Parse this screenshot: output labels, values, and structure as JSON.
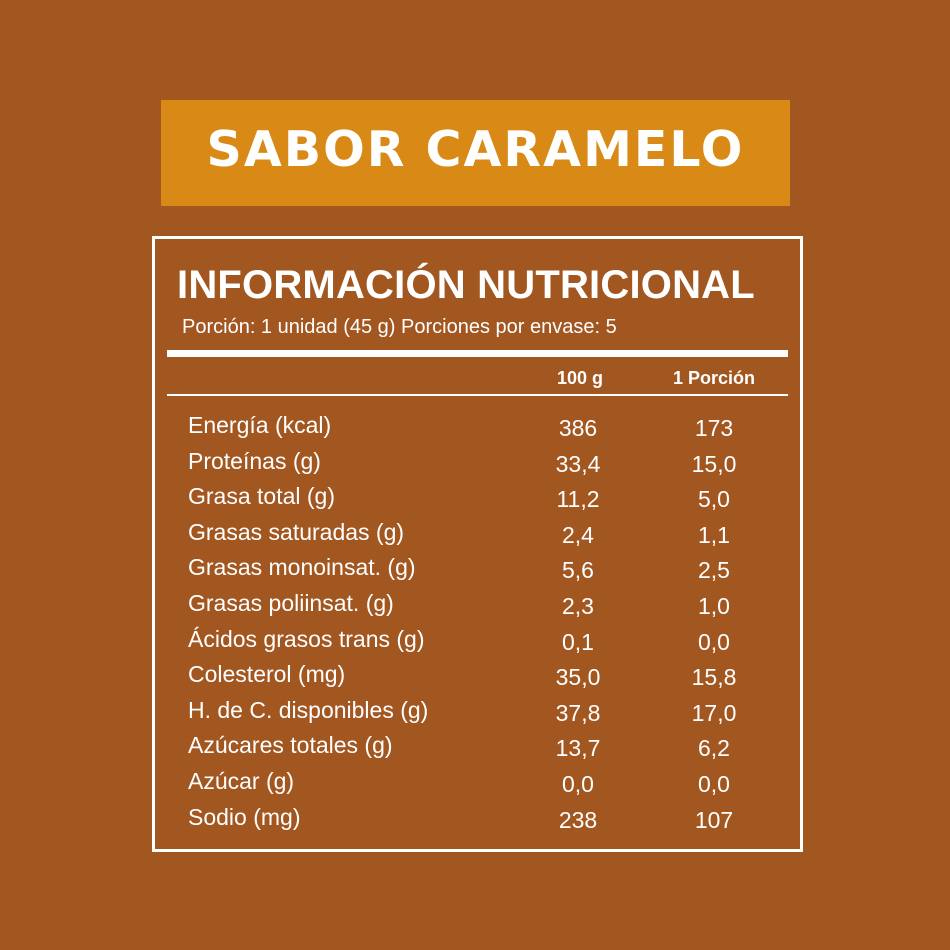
{
  "banner": {
    "title": "SABOR CARAMELO"
  },
  "panel": {
    "title": "INFORMACIÓN NUTRICIONAL",
    "subtitle": "Porción: 1 unidad (45 g) Porciones por envase: 5",
    "columns": [
      "100 g",
      "1 Porción"
    ],
    "rows": [
      {
        "label": "Energía (kcal)",
        "per100": "386",
        "perPortion": "173"
      },
      {
        "label": "Proteínas (g)",
        "per100": "33,4",
        "perPortion": "15,0"
      },
      {
        "label": "Grasa total (g)",
        "per100": "11,2",
        "perPortion": "5,0"
      },
      {
        "label": "Grasas saturadas (g)",
        "per100": "2,4",
        "perPortion": "1,1"
      },
      {
        "label": "Grasas monoinsat. (g)",
        "per100": "5,6",
        "perPortion": "2,5"
      },
      {
        "label": "Grasas poliinsat. (g)",
        "per100": "2,3",
        "perPortion": "1,0"
      },
      {
        "label": "Ácidos grasos trans (g)",
        "per100": "0,1",
        "perPortion": "0,0"
      },
      {
        "label": "Colesterol (mg)",
        "per100": "35,0",
        "perPortion": "15,8"
      },
      {
        "label": "H. de C. disponibles (g)",
        "per100": "37,8",
        "perPortion": "17,0"
      },
      {
        "label": "Azúcares totales (g)",
        "per100": "13,7",
        "perPortion": "6,2"
      },
      {
        "label": "Azúcar (g)",
        "per100": "0,0",
        "perPortion": "0,0"
      },
      {
        "label": "Sodio (mg)",
        "per100": "238",
        "perPortion": "107"
      }
    ]
  },
  "colors": {
    "background": "#A25620",
    "banner": "#D98A16",
    "text": "#FFFFFF"
  }
}
